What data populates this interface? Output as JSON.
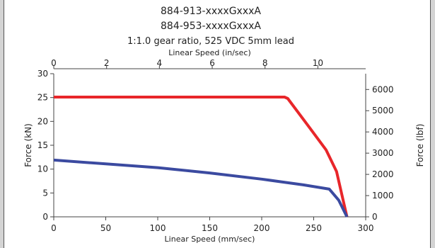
{
  "chart_data": {
    "type": "line",
    "title_lines": [
      "884-913-xxxxGxxxA",
      "884-953-xxxxGxxxA",
      "1:1.0 gear ratio, 525 VDC 5mm lead"
    ],
    "xlabel": "Linear Speed (mm/sec)",
    "x2label": "Linear Speed (in/sec)",
    "ylabel": "Force (kN)",
    "y2label": "Force (lbf)",
    "xlim": [
      0,
      300
    ],
    "x2lim": [
      0,
      11.811
    ],
    "ylim": [
      0,
      30
    ],
    "y2lim": [
      0,
      6744
    ],
    "x_ticks": [
      0,
      50,
      100,
      150,
      200,
      250,
      300
    ],
    "x2_ticks": [
      0,
      2,
      4,
      6,
      8,
      10
    ],
    "y_ticks": [
      0,
      5,
      10,
      15,
      20,
      25,
      30
    ],
    "y2_ticks": [
      0,
      1000,
      2000,
      3000,
      4000,
      5000,
      6000
    ],
    "grid": false,
    "series": [
      {
        "color": "#e8262a",
        "x": [
          0,
          222,
          225,
          245,
          262,
          272,
          282
        ],
        "y": [
          25.1,
          25.1,
          24.8,
          19,
          14,
          9.5,
          0
        ]
      },
      {
        "color": "#3b4aa0",
        "x": [
          0,
          50,
          100,
          150,
          200,
          240,
          265,
          274,
          282
        ],
        "y": [
          11.9,
          11.1,
          10.3,
          9.2,
          7.9,
          6.7,
          5.8,
          3.5,
          0
        ]
      }
    ]
  }
}
